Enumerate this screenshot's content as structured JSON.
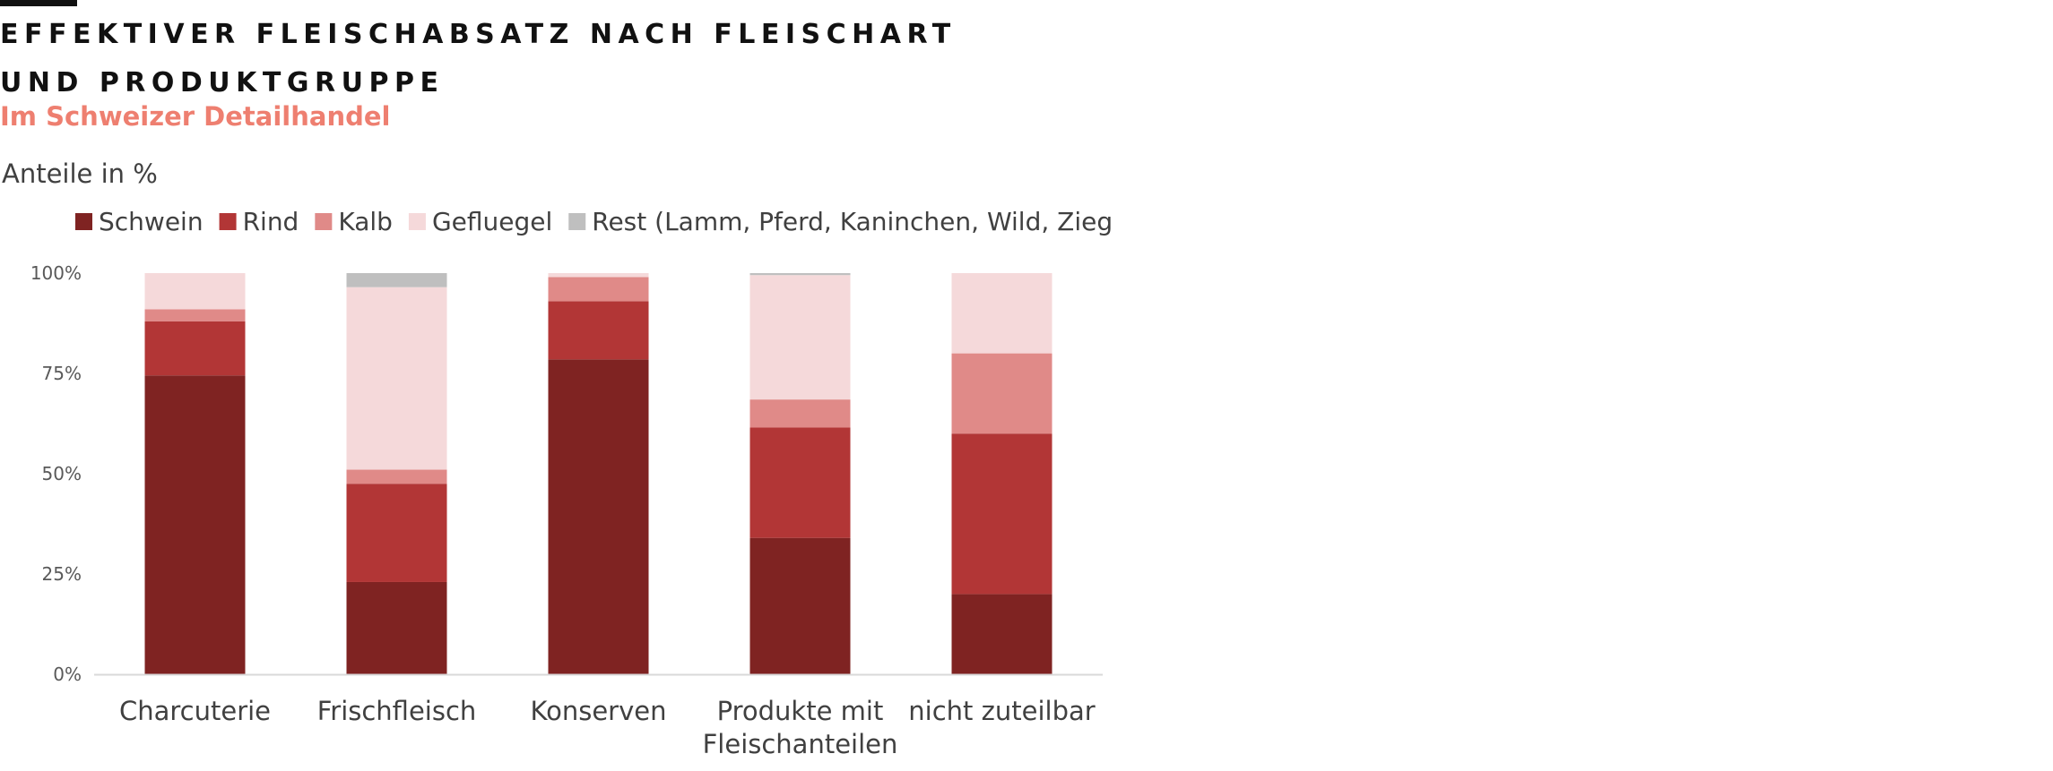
{
  "header": {
    "title": "EFFEKTIVER FLEISCHABSATZ NACH FLEISCHART UND PRODUKTGRUPPE",
    "subtitle": "Im Schweizer Detailhandel",
    "units_label": "Anteile in %"
  },
  "colors": {
    "schwein": "#7f2322",
    "rind": "#b23636",
    "kalb": "#e08a88",
    "gefluegel": "#f5d9da",
    "rest": "#bfbfbf",
    "subtitle": "#ee7f70"
  },
  "chart_data": {
    "type": "bar",
    "stacked": true,
    "percent": true,
    "categories": [
      [
        "Charcuterie"
      ],
      [
        "Frischfleisch"
      ],
      [
        "Konserven"
      ],
      [
        "Produkte mit",
        "Fleischanteilen"
      ],
      [
        "nicht zuteilbar"
      ]
    ],
    "series": [
      {
        "name": "Schwein",
        "color": "#7f2322",
        "values": [
          74.5,
          23,
          78.5,
          34,
          20
        ]
      },
      {
        "name": "Rind",
        "color": "#b23636",
        "values": [
          13.5,
          24.5,
          14.5,
          27.5,
          40
        ]
      },
      {
        "name": "Kalb",
        "color": "#e08a88",
        "values": [
          3,
          3.5,
          6,
          7,
          20
        ]
      },
      {
        "name": "Gefluegel",
        "color": "#f5d9da",
        "values": [
          9,
          45.5,
          1,
          31,
          20
        ]
      },
      {
        "name": "Rest (Lamm, Pferd, Kaninchen, Wild, Ziege)",
        "color": "#bfbfbf",
        "values": [
          0,
          3.5,
          0,
          0.5,
          0
        ]
      }
    ],
    "yticks": [
      "0%",
      "25%",
      "50%",
      "75%",
      "100%"
    ],
    "ylim": [
      0,
      100
    ],
    "legend_position": "top"
  }
}
